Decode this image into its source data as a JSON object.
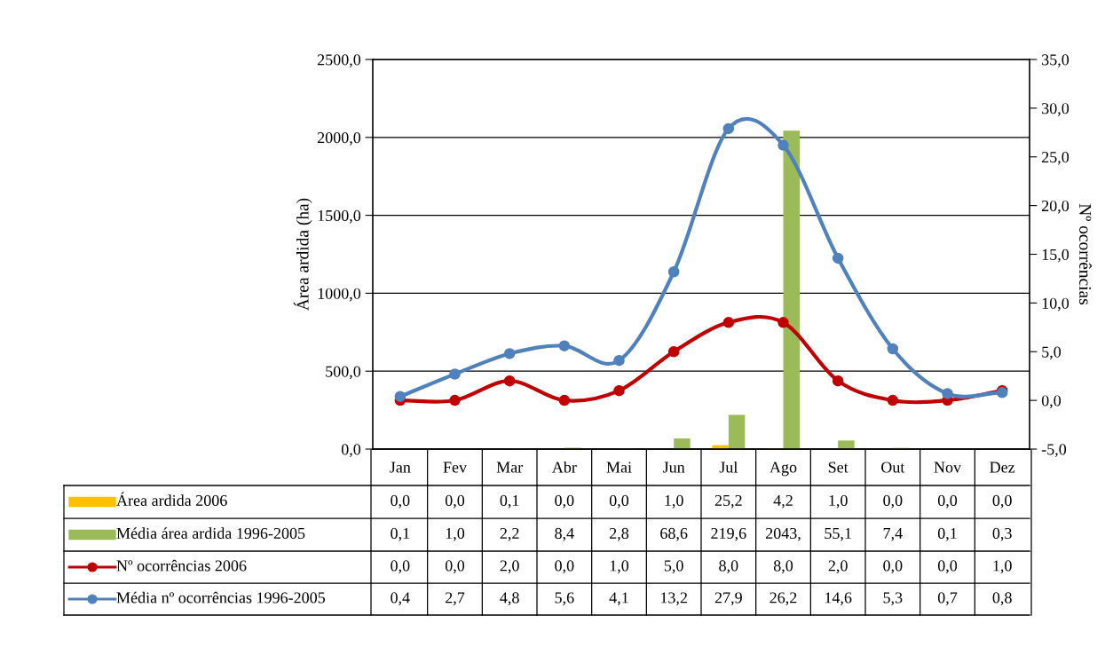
{
  "chart_data": {
    "type": "bar",
    "ylabel": "Área ardida (ha)",
    "y2label": "Nº ocorrências",
    "categories": [
      "Jan",
      "Fev",
      "Mar",
      "Abr",
      "Mai",
      "Jun",
      "Jul",
      "Ago",
      "Set",
      "Out",
      "Nov",
      "Dez"
    ],
    "series": [
      {
        "name": "Área ardida 2006",
        "color": "#ffc000",
        "values": [
          0.0,
          0.0,
          0.1,
          0.0,
          0.0,
          1.0,
          25.2,
          4.2,
          1.0,
          0.0,
          0.0,
          0.0
        ],
        "value_labels": [
          "0,0",
          "0,0",
          "0,1",
          "0,0",
          "0,0",
          "1,0",
          "25,2",
          "4,2",
          "1,0",
          "0,0",
          "0,0",
          "0,0"
        ]
      },
      {
        "name": "Média área ardida 1996-2005",
        "color": "#9bbb59",
        "values": [
          0.1,
          1.0,
          2.2,
          8.4,
          2.8,
          68.6,
          219.6,
          2043,
          55.1,
          7.4,
          0.1,
          0.3
        ],
        "value_labels": [
          "0,1",
          "1,0",
          "2,2",
          "8,4",
          "2,8",
          "68,6",
          "219,6",
          "2043,",
          "55,1",
          "7,4",
          "0,1",
          "0,3"
        ]
      },
      {
        "name": "Nº ocorrências 2006",
        "type": "line",
        "axis": "y2",
        "color": "#c00000",
        "values": [
          0.0,
          0.0,
          2.0,
          0.0,
          1.0,
          5.0,
          8.0,
          8.0,
          2.0,
          0.0,
          0.0,
          1.0
        ],
        "value_labels": [
          "0,0",
          "0,0",
          "2,0",
          "0,0",
          "1,0",
          "5,0",
          "8,0",
          "8,0",
          "2,0",
          "0,0",
          "0,0",
          "1,0"
        ]
      },
      {
        "name": "Média nº ocorrências 1996-2005",
        "type": "line",
        "axis": "y2",
        "color": "#4f81bd",
        "values": [
          0.4,
          2.7,
          4.8,
          5.6,
          4.1,
          13.2,
          27.9,
          26.2,
          14.6,
          5.3,
          0.7,
          0.8
        ],
        "value_labels": [
          "0,4",
          "2,7",
          "4,8",
          "5,6",
          "4,1",
          "13,2",
          "27,9",
          "26,2",
          "14,6",
          "5,3",
          "0,7",
          "0,8"
        ]
      }
    ],
    "ylim": [
      0,
      2500
    ],
    "yticks": [
      {
        "value": 0,
        "label": "0,0"
      },
      {
        "value": 500,
        "label": "500,0"
      },
      {
        "value": 1000,
        "label": "1000,0"
      },
      {
        "value": 1500,
        "label": "1500,0"
      },
      {
        "value": 2000,
        "label": "2000,0"
      },
      {
        "value": 2500,
        "label": "2500,0"
      }
    ],
    "y2lim": [
      -5,
      35
    ],
    "y2ticks": [
      {
        "value": -5,
        "label": "-5,0"
      },
      {
        "value": 0,
        "label": "0,0"
      },
      {
        "value": 5,
        "label": "5,0"
      },
      {
        "value": 10,
        "label": "10,0"
      },
      {
        "value": 15,
        "label": "15,0"
      },
      {
        "value": 20,
        "label": "20,0"
      },
      {
        "value": 25,
        "label": "25,0"
      },
      {
        "value": 30,
        "label": "30,0"
      },
      {
        "value": 35,
        "label": "35,0"
      }
    ],
    "grid": "y",
    "legend": "bottom",
    "marker": "circle",
    "line_style": "solid"
  }
}
